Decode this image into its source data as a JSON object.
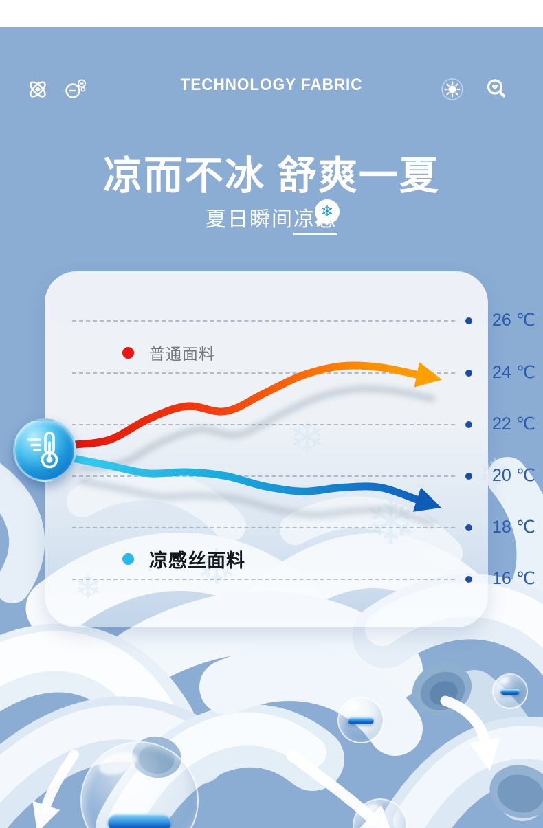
{
  "page": {
    "background_color": "#8badd4",
    "top_strip_color": "#ffffff"
  },
  "header": {
    "title": "TECHNOLOGY FABRIC",
    "left_icons": [
      "atom-icon",
      "negative-ion-icon"
    ],
    "right_icons": [
      "sun-icon",
      "search-icon"
    ]
  },
  "hero": {
    "title": "凉而不冰 舒爽一夏",
    "subtitle_prefix": "夏日瞬间",
    "subtitle_underlined": "凉感",
    "badge_icon": "snowflake-icon",
    "badge_glyph": "❄"
  },
  "chart_data": {
    "type": "line",
    "title": "",
    "xlabel": "",
    "ylabel": "",
    "grid": "dashed-horizontal",
    "legend_position": "inside",
    "yticks": [
      "26 ℃",
      "24 ℃",
      "22 ℃",
      "20 ℃",
      "18 ℃",
      "16 ℃"
    ],
    "ytick_values": [
      26,
      24,
      22,
      20,
      18,
      16
    ],
    "ylim": [
      15,
      27
    ],
    "origin_marker": "thermometer-icon",
    "series": [
      {
        "name": "普通面料",
        "dot_color": "#ee1410",
        "line_color_start": "#e3130b",
        "line_color_end": "#ffa000",
        "trend": "rising",
        "values_c": [
          21.2,
          21.4,
          22.2,
          22.7,
          22.5,
          23.2,
          23.9,
          24.25,
          24.2,
          23.9
        ]
      },
      {
        "name": "凉感丝面料",
        "dot_color": "#2ab9e6",
        "line_color_start": "#35cdf0",
        "line_color_end": "#0f5cb8",
        "trend": "falling",
        "values_c": [
          20.7,
          20.4,
          20.1,
          20.15,
          20.0,
          19.6,
          19.4,
          19.55,
          19.55,
          19.05
        ]
      }
    ]
  },
  "decor": {
    "ion_bubble_symbol": "−",
    "bubble_count": 4,
    "snowflake_glyph": "❄"
  }
}
